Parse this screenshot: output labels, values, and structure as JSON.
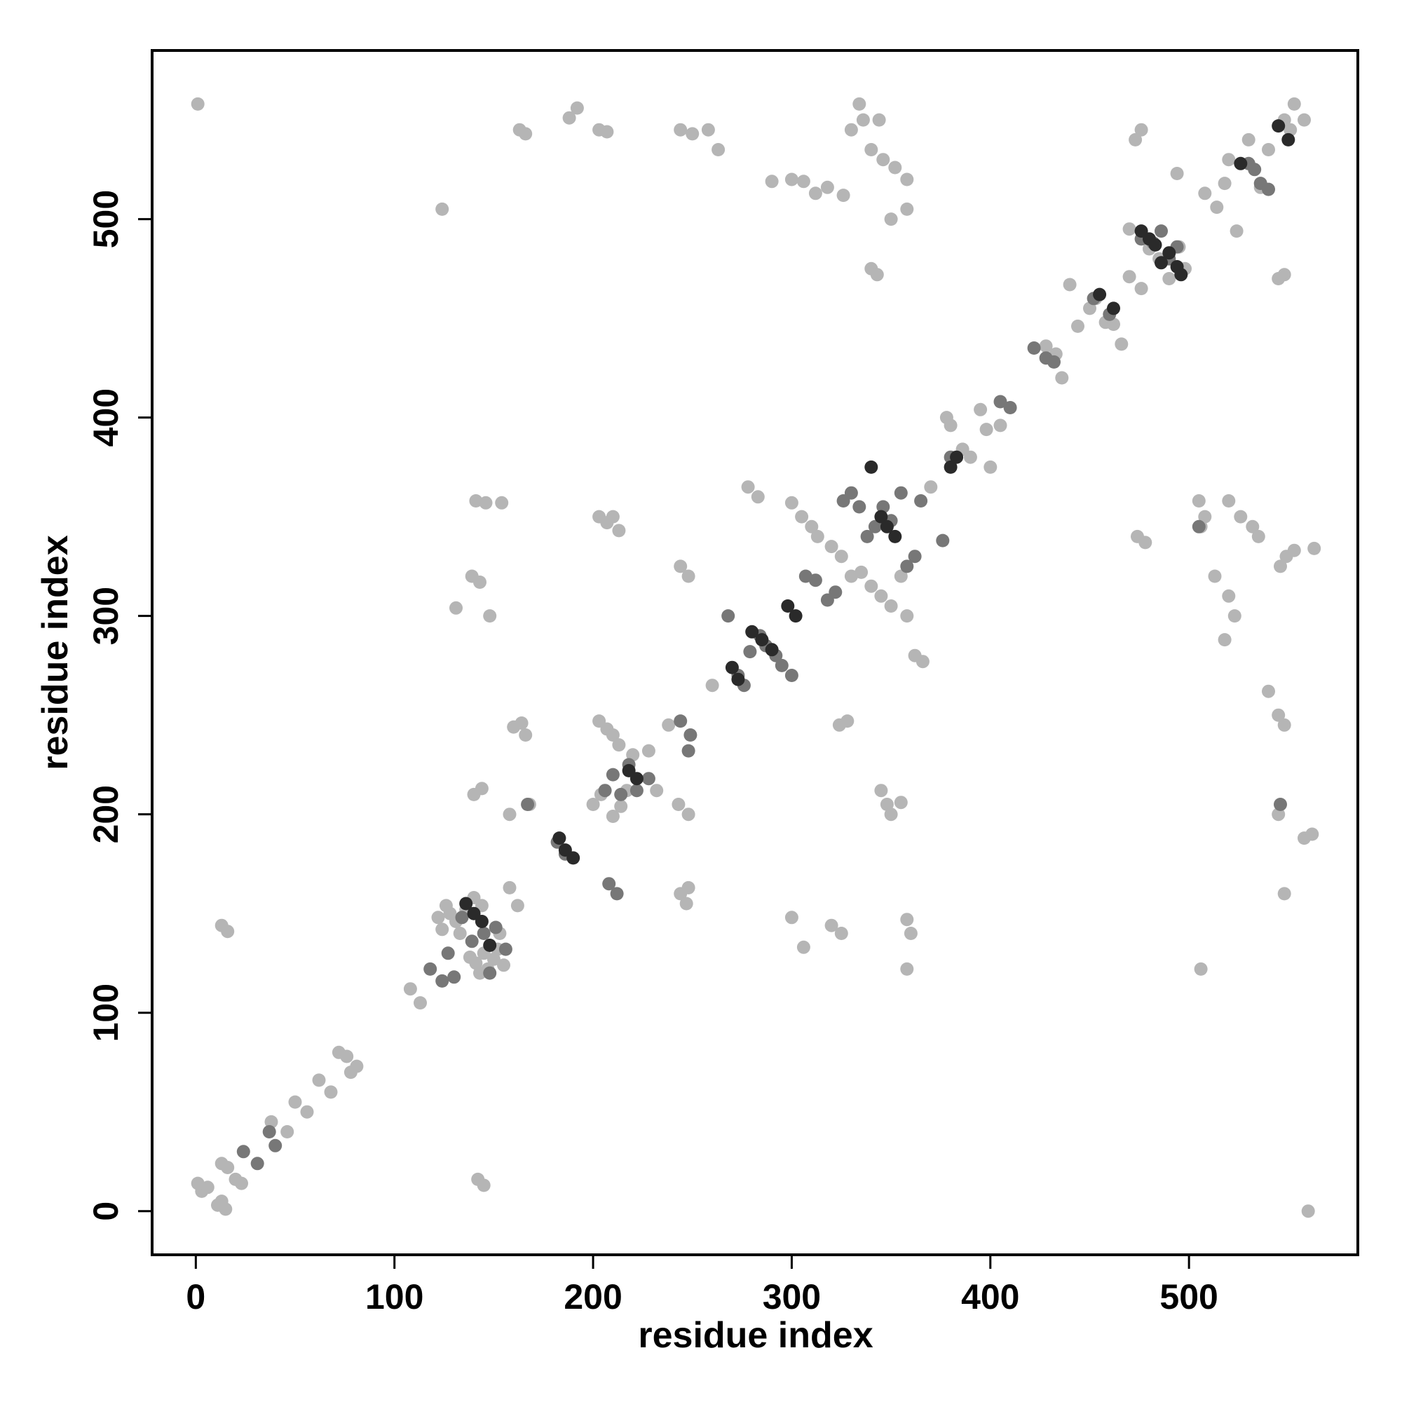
{
  "chart_data": {
    "type": "scatter",
    "title": "",
    "xlabel": "residue index",
    "ylabel": "residue index",
    "xlim": [
      -22,
      585
    ],
    "ylim": [
      -22,
      585
    ],
    "x_ticks": [
      0,
      100,
      200,
      300,
      400,
      500
    ],
    "y_ticks": [
      0,
      100,
      200,
      300,
      400,
      500
    ],
    "x_tick_labels": [
      "0",
      "100",
      "200",
      "300",
      "400",
      "500"
    ],
    "y_tick_labels": [
      "0",
      "100",
      "200",
      "300",
      "400",
      "500"
    ],
    "grid": false,
    "legend": "none",
    "colors": {
      "light": "#b5b5b5",
      "mid": "#777777",
      "dark": "#2a2a2a"
    },
    "series": [
      {
        "shade": "light",
        "points": [
          [
            1,
            14
          ],
          [
            3,
            10
          ],
          [
            6,
            12
          ],
          [
            11,
            3
          ],
          [
            13,
            5
          ],
          [
            15,
            1
          ],
          [
            13,
            24
          ],
          [
            16,
            22
          ],
          [
            20,
            16
          ],
          [
            23,
            14
          ],
          [
            38,
            45
          ],
          [
            46,
            40
          ],
          [
            50,
            55
          ],
          [
            56,
            50
          ],
          [
            62,
            66
          ],
          [
            68,
            60
          ],
          [
            72,
            80
          ],
          [
            76,
            78
          ],
          [
            78,
            70
          ],
          [
            81,
            73
          ],
          [
            108,
            112
          ],
          [
            113,
            105
          ],
          [
            122,
            148
          ],
          [
            124,
            142
          ],
          [
            126,
            154
          ],
          [
            128,
            150
          ],
          [
            131,
            146
          ],
          [
            133,
            140
          ],
          [
            136,
            152
          ],
          [
            138,
            128
          ],
          [
            141,
            125
          ],
          [
            143,
            120
          ],
          [
            145,
            130
          ],
          [
            147,
            122
          ],
          [
            150,
            127
          ],
          [
            152,
            132
          ],
          [
            155,
            124
          ],
          [
            140,
            158
          ],
          [
            144,
            154
          ],
          [
            153,
            140
          ],
          [
            158,
            163
          ],
          [
            162,
            154
          ],
          [
            160,
            244
          ],
          [
            164,
            246
          ],
          [
            166,
            240
          ],
          [
            168,
            205
          ],
          [
            158,
            200
          ],
          [
            140,
            210
          ],
          [
            144,
            213
          ],
          [
            131,
            304
          ],
          [
            148,
            300
          ],
          [
            139,
            320
          ],
          [
            143,
            317
          ],
          [
            141,
            358
          ],
          [
            146,
            357
          ],
          [
            154,
            357
          ],
          [
            124,
            505
          ],
          [
            1,
            558
          ],
          [
            13,
            144
          ],
          [
            16,
            141
          ],
          [
            142,
            16
          ],
          [
            145,
            13
          ],
          [
            163,
            545
          ],
          [
            166,
            543
          ],
          [
            188,
            551
          ],
          [
            192,
            556
          ],
          [
            203,
            545
          ],
          [
            207,
            544
          ],
          [
            203,
            350
          ],
          [
            207,
            347
          ],
          [
            210,
            350
          ],
          [
            213,
            343
          ],
          [
            203,
            247
          ],
          [
            207,
            243
          ],
          [
            210,
            240
          ],
          [
            213,
            235
          ],
          [
            200,
            205
          ],
          [
            204,
            210
          ],
          [
            210,
            199
          ],
          [
            214,
            204
          ],
          [
            217,
            212
          ],
          [
            220,
            230
          ],
          [
            228,
            232
          ],
          [
            232,
            212
          ],
          [
            238,
            245
          ],
          [
            243,
            205
          ],
          [
            248,
            200
          ],
          [
            244,
            160
          ],
          [
            248,
            163
          ],
          [
            247,
            155
          ],
          [
            244,
            325
          ],
          [
            248,
            320
          ],
          [
            244,
            545
          ],
          [
            250,
            543
          ],
          [
            258,
            545
          ],
          [
            263,
            535
          ],
          [
            260,
            265
          ],
          [
            290,
            519
          ],
          [
            300,
            520
          ],
          [
            306,
            519
          ],
          [
            312,
            513
          ],
          [
            318,
            516
          ],
          [
            326,
            512
          ],
          [
            330,
            545
          ],
          [
            334,
            558
          ],
          [
            336,
            550
          ],
          [
            340,
            535
          ],
          [
            346,
            530
          ],
          [
            352,
            526
          ],
          [
            358,
            520
          ],
          [
            358,
            505
          ],
          [
            350,
            500
          ],
          [
            340,
            475
          ],
          [
            343,
            472
          ],
          [
            300,
            357
          ],
          [
            305,
            350
          ],
          [
            310,
            345
          ],
          [
            313,
            340
          ],
          [
            320,
            335
          ],
          [
            325,
            330
          ],
          [
            330,
            320
          ],
          [
            335,
            322
          ],
          [
            340,
            315
          ],
          [
            345,
            310
          ],
          [
            350,
            305
          ],
          [
            355,
            320
          ],
          [
            358,
            300
          ],
          [
            362,
            280
          ],
          [
            366,
            277
          ],
          [
            358,
            147
          ],
          [
            360,
            140
          ],
          [
            358,
            122
          ],
          [
            300,
            148
          ],
          [
            306,
            133
          ],
          [
            320,
            144
          ],
          [
            325,
            140
          ],
          [
            345,
            212
          ],
          [
            348,
            205
          ],
          [
            350,
            200
          ],
          [
            355,
            206
          ],
          [
            324,
            245
          ],
          [
            328,
            247
          ],
          [
            344,
            550
          ],
          [
            278,
            365
          ],
          [
            283,
            360
          ],
          [
            370,
            365
          ],
          [
            378,
            400
          ],
          [
            380,
            396
          ],
          [
            386,
            384
          ],
          [
            390,
            380
          ],
          [
            395,
            404
          ],
          [
            398,
            394
          ],
          [
            400,
            375
          ],
          [
            405,
            396
          ],
          [
            428,
            436
          ],
          [
            433,
            432
          ],
          [
            436,
            420
          ],
          [
            440,
            467
          ],
          [
            444,
            446
          ],
          [
            450,
            455
          ],
          [
            453,
            460
          ],
          [
            458,
            448
          ],
          [
            462,
            447
          ],
          [
            466,
            437
          ],
          [
            470,
            471
          ],
          [
            473,
            540
          ],
          [
            476,
            545
          ],
          [
            476,
            465
          ],
          [
            470,
            495
          ],
          [
            480,
            485
          ],
          [
            485,
            480
          ],
          [
            490,
            470
          ],
          [
            495,
            486
          ],
          [
            498,
            475
          ],
          [
            494,
            523
          ],
          [
            505,
            358
          ],
          [
            506,
            345
          ],
          [
            508,
            350
          ],
          [
            506,
            122
          ],
          [
            508,
            513
          ],
          [
            514,
            506
          ],
          [
            520,
            530
          ],
          [
            518,
            518
          ],
          [
            524,
            494
          ],
          [
            530,
            540
          ],
          [
            536,
            516
          ],
          [
            540,
            535
          ],
          [
            548,
            550
          ],
          [
            551,
            545
          ],
          [
            553,
            558
          ],
          [
            558,
            550
          ],
          [
            520,
            358
          ],
          [
            526,
            350
          ],
          [
            532,
            345
          ],
          [
            535,
            340
          ],
          [
            540,
            262
          ],
          [
            545,
            250
          ],
          [
            548,
            245
          ],
          [
            546,
            325
          ],
          [
            549,
            330
          ],
          [
            553,
            333
          ],
          [
            558,
            188
          ],
          [
            562,
            190
          ],
          [
            545,
            200
          ],
          [
            548,
            160
          ],
          [
            560,
            0
          ],
          [
            563,
            334
          ],
          [
            520,
            310
          ],
          [
            523,
            300
          ],
          [
            518,
            288
          ],
          [
            513,
            320
          ],
          [
            548,
            472
          ],
          [
            545,
            470
          ],
          [
            474,
            340
          ],
          [
            478,
            337
          ]
        ]
      },
      {
        "shade": "mid",
        "points": [
          [
            24,
            30
          ],
          [
            31,
            24
          ],
          [
            40,
            33
          ],
          [
            37,
            40
          ],
          [
            118,
            122
          ],
          [
            124,
            116
          ],
          [
            127,
            130
          ],
          [
            130,
            118
          ],
          [
            134,
            148
          ],
          [
            139,
            136
          ],
          [
            145,
            140
          ],
          [
            151,
            143
          ],
          [
            156,
            132
          ],
          [
            148,
            120
          ],
          [
            167,
            205
          ],
          [
            182,
            186
          ],
          [
            186,
            180
          ],
          [
            210,
            220
          ],
          [
            214,
            210
          ],
          [
            218,
            225
          ],
          [
            222,
            212
          ],
          [
            228,
            218
          ],
          [
            206,
            212
          ],
          [
            208,
            165
          ],
          [
            212,
            160
          ],
          [
            244,
            247
          ],
          [
            249,
            240
          ],
          [
            248,
            232
          ],
          [
            268,
            300
          ],
          [
            273,
            270
          ],
          [
            276,
            265
          ],
          [
            279,
            282
          ],
          [
            284,
            290
          ],
          [
            287,
            285
          ],
          [
            292,
            280
          ],
          [
            295,
            275
          ],
          [
            300,
            270
          ],
          [
            307,
            320
          ],
          [
            312,
            318
          ],
          [
            318,
            308
          ],
          [
            322,
            312
          ],
          [
            326,
            358
          ],
          [
            330,
            362
          ],
          [
            334,
            355
          ],
          [
            338,
            340
          ],
          [
            342,
            345
          ],
          [
            346,
            355
          ],
          [
            350,
            348
          ],
          [
            355,
            362
          ],
          [
            358,
            325
          ],
          [
            362,
            330
          ],
          [
            365,
            358
          ],
          [
            376,
            338
          ],
          [
            380,
            380
          ],
          [
            405,
            408
          ],
          [
            410,
            405
          ],
          [
            422,
            435
          ],
          [
            428,
            430
          ],
          [
            432,
            428
          ],
          [
            452,
            460
          ],
          [
            460,
            452
          ],
          [
            476,
            490
          ],
          [
            482,
            488
          ],
          [
            486,
            494
          ],
          [
            490,
            480
          ],
          [
            494,
            486
          ],
          [
            505,
            345
          ],
          [
            530,
            528
          ],
          [
            533,
            525
          ],
          [
            536,
            518
          ],
          [
            540,
            515
          ],
          [
            546,
            205
          ]
        ]
      },
      {
        "shade": "dark",
        "points": [
          [
            136,
            155
          ],
          [
            140,
            150
          ],
          [
            144,
            146
          ],
          [
            148,
            134
          ],
          [
            183,
            188
          ],
          [
            186,
            182
          ],
          [
            190,
            178
          ],
          [
            218,
            222
          ],
          [
            222,
            218
          ],
          [
            270,
            274
          ],
          [
            273,
            268
          ],
          [
            280,
            292
          ],
          [
            285,
            288
          ],
          [
            290,
            283
          ],
          [
            298,
            305
          ],
          [
            302,
            300
          ],
          [
            340,
            375
          ],
          [
            345,
            350
          ],
          [
            348,
            345
          ],
          [
            352,
            340
          ],
          [
            380,
            375
          ],
          [
            383,
            380
          ],
          [
            455,
            462
          ],
          [
            462,
            455
          ],
          [
            476,
            494
          ],
          [
            480,
            490
          ],
          [
            483,
            487
          ],
          [
            486,
            478
          ],
          [
            490,
            483
          ],
          [
            494,
            476
          ],
          [
            496,
            472
          ],
          [
            545,
            547
          ],
          [
            550,
            540
          ],
          [
            526,
            528
          ]
        ]
      }
    ]
  }
}
